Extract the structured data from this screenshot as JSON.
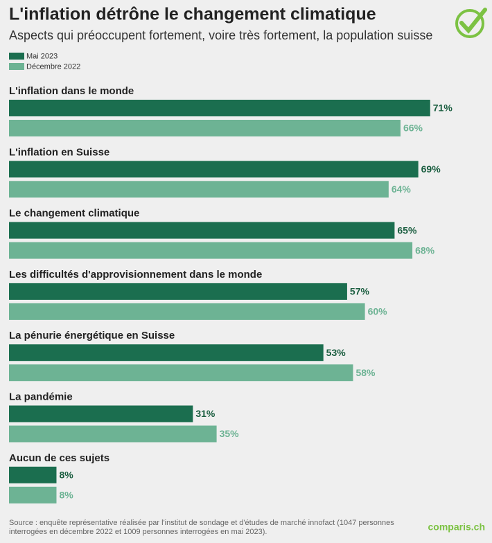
{
  "chart_data": {
    "type": "hbar",
    "title": "L'inflation détrône le changement climatique",
    "subtitle": "Aspects qui préoccupent fortement, voire très fortement, la population suisse",
    "categories": [
      "L'inflation dans le monde",
      "L'inflation en Suisse",
      "Le changement climatique",
      "Les difficultés d'approvisionnement dans le monde",
      "La pénurie énergétique en Suisse",
      "La pandémie",
      "Aucun de ces sujets"
    ],
    "series": [
      {
        "name": "Mai 2023",
        "color": "#1b6e4f",
        "values": [
          71,
          69,
          65,
          57,
          53,
          31,
          8
        ],
        "value_labels": [
          "71%",
          "69%",
          "65%",
          "57%",
          "53%",
          "31%",
          "8%"
        ]
      },
      {
        "name": "Décembre 2022",
        "color": "#6db394",
        "values": [
          66,
          64,
          68,
          60,
          58,
          35,
          8
        ],
        "value_labels": [
          "66%",
          "64%",
          "68%",
          "60%",
          "58%",
          "35%",
          "8%"
        ]
      }
    ],
    "source": "Source : enquête représentative réalisée par l'institut de sondage et d'études de marché innofact (1047 personnes interrogées en décembre 2022 et 1009 personnes interrogées en mai 2023).",
    "logo": "comparis.ch"
  }
}
